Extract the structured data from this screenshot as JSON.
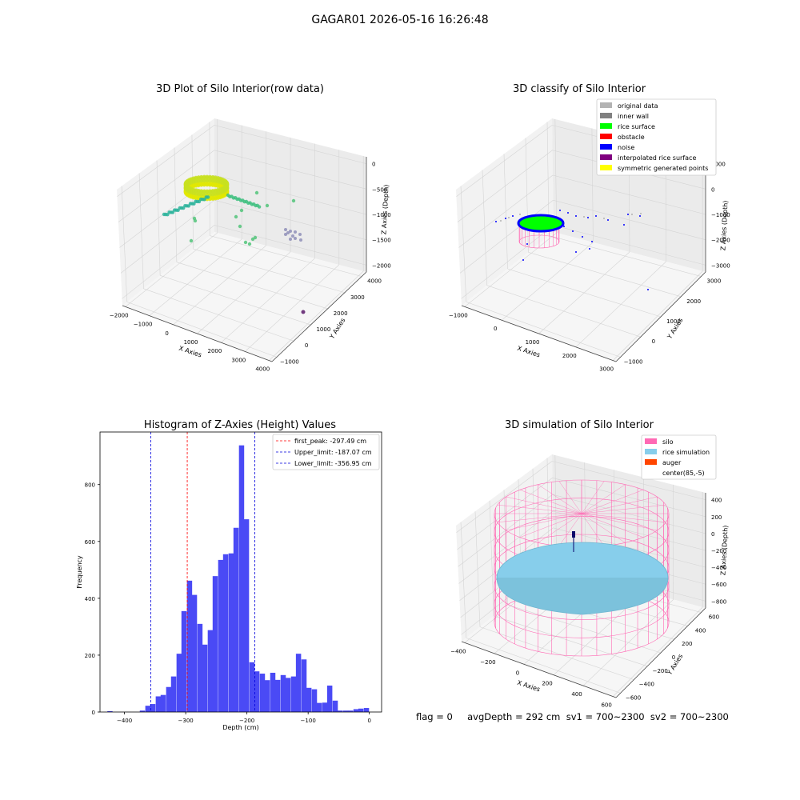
{
  "suptitle": "GAGAR01 2026-05-16 16:26:48",
  "footer": "flag = 0     avgDepth = 292 cm  sv1 = 700~2300  sv2 = 700~2300",
  "colors": {
    "histogram": "#4a4af5",
    "peak_line": "#ff0000",
    "limit_line": "#0000dd",
    "silo": "#ff69b4",
    "rice": "#87ceeb",
    "auger": "#ff4500",
    "original": "#b3b3b3",
    "inner_wall": "#808080",
    "rice_surface": "#00ff00",
    "obstacle": "#ff0000",
    "noise": "#0000ff",
    "interpolated": "#800080",
    "symmetric": "#ffff00"
  },
  "panels": {
    "raw": {
      "title": "3D Plot of Silo Interior(row data)",
      "xlabel": "X Axies",
      "ylabel": "Y Axies",
      "zlabel": "Z Axies (Depth)",
      "xticks": [
        "−2000",
        "−1000",
        "0",
        "1000",
        "2000",
        "3000",
        "4000"
      ],
      "yticks": [
        "−1000",
        "0",
        "1000",
        "2000",
        "3000",
        "4000"
      ],
      "zticks": [
        "0",
        "−500",
        "−1000",
        "−1500",
        "−2000"
      ]
    },
    "classify": {
      "title": "3D classify of Silo Interior",
      "xlabel": "X Axies",
      "ylabel": "Y Axies",
      "zlabel": "Z Axies (Depth)",
      "xticks": [
        "−1000",
        "0",
        "1000",
        "2000",
        "3000"
      ],
      "yticks": [
        "−1000",
        "0",
        "1000",
        "2000",
        "3000"
      ],
      "zticks": [
        "1000",
        "0",
        "−1000",
        "−2000",
        "−3000"
      ],
      "legend": [
        {
          "label": "original data",
          "color": "#b3b3b3"
        },
        {
          "label": "inner wall",
          "color": "#808080"
        },
        {
          "label": "rice surface",
          "color": "#00ff00"
        },
        {
          "label": "obstacle",
          "color": "#ff0000"
        },
        {
          "label": "noise",
          "color": "#0000ff"
        },
        {
          "label": "interpolated rice surface",
          "color": "#800080"
        },
        {
          "label": "symmetric generated points",
          "color": "#ffff00"
        }
      ]
    },
    "simulation": {
      "title": "3D simulation of Silo Interior",
      "xlabel": "X Axies",
      "ylabel": "Y Axies",
      "zlabel": "Z Axies (Depth)",
      "xticks": [
        "−400",
        "−200",
        "0",
        "200",
        "400",
        "600"
      ],
      "yticks": [
        "−600",
        "−400",
        "−200",
        "0",
        "200",
        "400",
        "600"
      ],
      "zticks": [
        "400",
        "200",
        "0",
        "−200",
        "−400",
        "−600",
        "−800"
      ],
      "legend": [
        {
          "label": "silo",
          "color": "#ff69b4"
        },
        {
          "label": "rice simulation",
          "color": "#87ceeb"
        },
        {
          "label": "auger",
          "color": "#ff4500"
        },
        {
          "label": "center(85,-5)",
          "color": ""
        }
      ]
    }
  },
  "chart_data": {
    "type": "bar",
    "title": "Histogram of Z-Axies (Height) Values",
    "xlabel": "Depth (cm)",
    "ylabel": "Frequency",
    "xlim": [
      -440,
      20
    ],
    "ylim": [
      0,
      985
    ],
    "xticks": [
      -400,
      -300,
      -200,
      -100,
      0
    ],
    "yticks": [
      0,
      200,
      400,
      600,
      800
    ],
    "xtick_labels": [
      "−400",
      "−300",
      "−200",
      "−100",
      "0"
    ],
    "bin_width": 8.5,
    "bins": [
      {
        "x": -428,
        "v": 3
      },
      {
        "x": -375,
        "v": 5
      },
      {
        "x": -366,
        "v": 22
      },
      {
        "x": -358,
        "v": 28
      },
      {
        "x": -349,
        "v": 55
      },
      {
        "x": -341,
        "v": 60
      },
      {
        "x": -332,
        "v": 88
      },
      {
        "x": -324,
        "v": 125
      },
      {
        "x": -315,
        "v": 205
      },
      {
        "x": -307,
        "v": 355
      },
      {
        "x": -298,
        "v": 462
      },
      {
        "x": -290,
        "v": 412
      },
      {
        "x": -281,
        "v": 310
      },
      {
        "x": -273,
        "v": 237
      },
      {
        "x": -264,
        "v": 288
      },
      {
        "x": -256,
        "v": 478
      },
      {
        "x": -247,
        "v": 535
      },
      {
        "x": -239,
        "v": 555
      },
      {
        "x": -230,
        "v": 558
      },
      {
        "x": -222,
        "v": 648
      },
      {
        "x": -213,
        "v": 938
      },
      {
        "x": -205,
        "v": 678
      },
      {
        "x": -196,
        "v": 175
      },
      {
        "x": -188,
        "v": 143
      },
      {
        "x": -179,
        "v": 135
      },
      {
        "x": -171,
        "v": 112
      },
      {
        "x": -162,
        "v": 138
      },
      {
        "x": -154,
        "v": 113
      },
      {
        "x": -145,
        "v": 130
      },
      {
        "x": -137,
        "v": 120
      },
      {
        "x": -128,
        "v": 125
      },
      {
        "x": -120,
        "v": 205
      },
      {
        "x": -111,
        "v": 185
      },
      {
        "x": -103,
        "v": 85
      },
      {
        "x": -94,
        "v": 80
      },
      {
        "x": -86,
        "v": 32
      },
      {
        "x": -77,
        "v": 33
      },
      {
        "x": -69,
        "v": 93
      },
      {
        "x": -60,
        "v": 40
      },
      {
        "x": -52,
        "v": 5
      },
      {
        "x": -43,
        "v": 5
      },
      {
        "x": -35,
        "v": 5
      },
      {
        "x": -26,
        "v": 10
      },
      {
        "x": -18,
        "v": 12
      },
      {
        "x": -9,
        "v": 14
      }
    ],
    "lines": [
      {
        "label": "first_peak: -297.49 cm",
        "x": -297.49,
        "color": "#ff0000"
      },
      {
        "label": "Upper_limit: -187.07 cm",
        "x": -187.07,
        "color": "#0000dd"
      },
      {
        "label": "Lower_limit: -356.95 cm",
        "x": -356.95,
        "color": "#0000dd"
      }
    ]
  }
}
